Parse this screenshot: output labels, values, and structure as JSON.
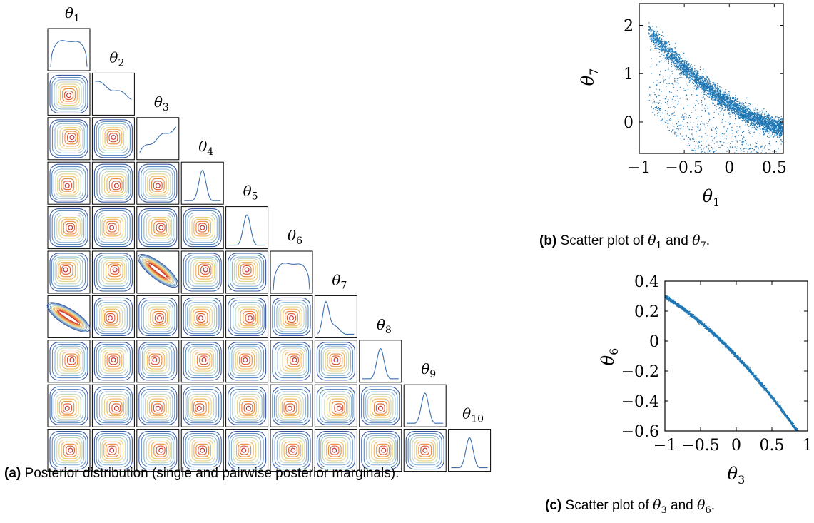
{
  "figure": {
    "caption_a": {
      "label": "(a)",
      "text": "Posterior distribution (single and pairwise posterior marginals)."
    },
    "caption_b": {
      "label": "(b)",
      "text_pre": "Scatter plot of ",
      "var1": "θ",
      "sub1": "1",
      "mid": " and ",
      "var2": "θ",
      "sub2": "7",
      "end": "."
    },
    "caption_c": {
      "label": "(c)",
      "text_pre": "Scatter plot of ",
      "var1": "θ",
      "sub1": "3",
      "mid": " and ",
      "var2": "θ",
      "sub2": "6",
      "end": "."
    }
  },
  "colors": {
    "marginal_line": "#3b6fb0",
    "scatter_point": "#1f77b4",
    "contour_palette": [
      "#3b5ba5",
      "#5d8cc0",
      "#8fb6d6",
      "#c8d8c0",
      "#e8d48a",
      "#f2b45a",
      "#ec8a3e",
      "#dc5a30",
      "#c6302a",
      "#a01825"
    ]
  },
  "chart_data": [
    {
      "type": "corner",
      "title": "",
      "parameters": [
        "θ1",
        "θ2",
        "θ3",
        "θ4",
        "θ5",
        "θ6",
        "θ7",
        "θ8",
        "θ9",
        "θ10"
      ],
      "parameter_labels": [
        {
          "var": "θ",
          "sub": "1"
        },
        {
          "var": "θ",
          "sub": "2"
        },
        {
          "var": "θ",
          "sub": "3"
        },
        {
          "var": "θ",
          "sub": "4"
        },
        {
          "var": "θ",
          "sub": "5"
        },
        {
          "var": "θ",
          "sub": "6"
        },
        {
          "var": "θ",
          "sub": "7"
        },
        {
          "var": "θ",
          "sub": "8"
        },
        {
          "var": "θ",
          "sub": "9"
        },
        {
          "var": "θ",
          "sub": "10"
        }
      ],
      "marginal_shapes": [
        "plateau",
        "decreasing",
        "increasing",
        "gaussian",
        "gaussian",
        "plateau",
        "skewed-right",
        "gaussian",
        "gaussian",
        "gaussian"
      ],
      "contour_levels": 9
    },
    {
      "type": "scatter",
      "title": "",
      "xlabel": {
        "var": "θ",
        "sub": "1"
      },
      "ylabel": {
        "var": "θ",
        "sub": "7"
      },
      "xlim": [
        -1,
        0.6
      ],
      "ylim": [
        -0.65,
        2.45
      ],
      "xticks": [
        -1,
        -0.5,
        0,
        0.5
      ],
      "xtick_labels": [
        "−1",
        "−0.5",
        "0",
        "0.5"
      ],
      "yticks": [
        0,
        1,
        2
      ],
      "ytick_labels": [
        "0",
        "1",
        "2"
      ],
      "relation": "curved band: θ7 ≈ 1.1·(0.6−θ1)^1.6 − 0.15 with spread below",
      "grid": false
    },
    {
      "type": "scatter",
      "title": "",
      "xlabel": {
        "var": "θ",
        "sub": "3"
      },
      "ylabel": {
        "var": "θ",
        "sub": "6"
      },
      "xlim": [
        -1,
        1
      ],
      "ylim": [
        -0.6,
        0.4
      ],
      "xticks": [
        -1,
        -0.5,
        0,
        0.5,
        1
      ],
      "xtick_labels": [
        "−1",
        "−0.5",
        "0",
        "0.5",
        "1"
      ],
      "yticks": [
        -0.6,
        -0.4,
        -0.2,
        0,
        0.2,
        0.4
      ],
      "ytick_labels": [
        "−0.6",
        "−0.4",
        "−0.2",
        "0",
        "0.2",
        "0.4"
      ],
      "relation": "narrow band: θ6 ≈ −0.5·θ3 − 0.1 − 0.1·θ3²",
      "grid": false
    }
  ]
}
